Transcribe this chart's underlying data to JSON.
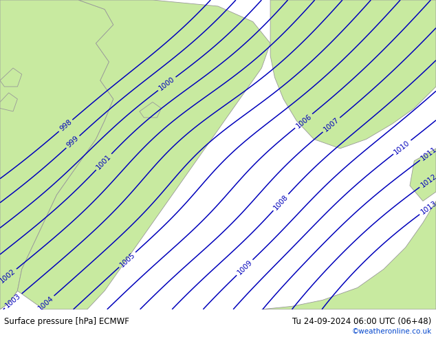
{
  "title_left": "Surface pressure [hPa] ECMWF",
  "title_right": "Tu 24-09-2024 06:00 UTC (06+48)",
  "copyright": "©weatheronline.co.uk",
  "sea_color": "#d8d8d8",
  "land_color": "#c8eaa0",
  "land_edge_color": "#999999",
  "contour_color": "#0000bb",
  "contour_linewidth": 1.1,
  "label_fontsize": 7.5,
  "bottom_bar_color": "#ffffff",
  "bottom_text_color": "#000000",
  "copyright_color": "#0044cc",
  "pressure_min": 998,
  "pressure_max": 1013,
  "pressure_step": 1
}
